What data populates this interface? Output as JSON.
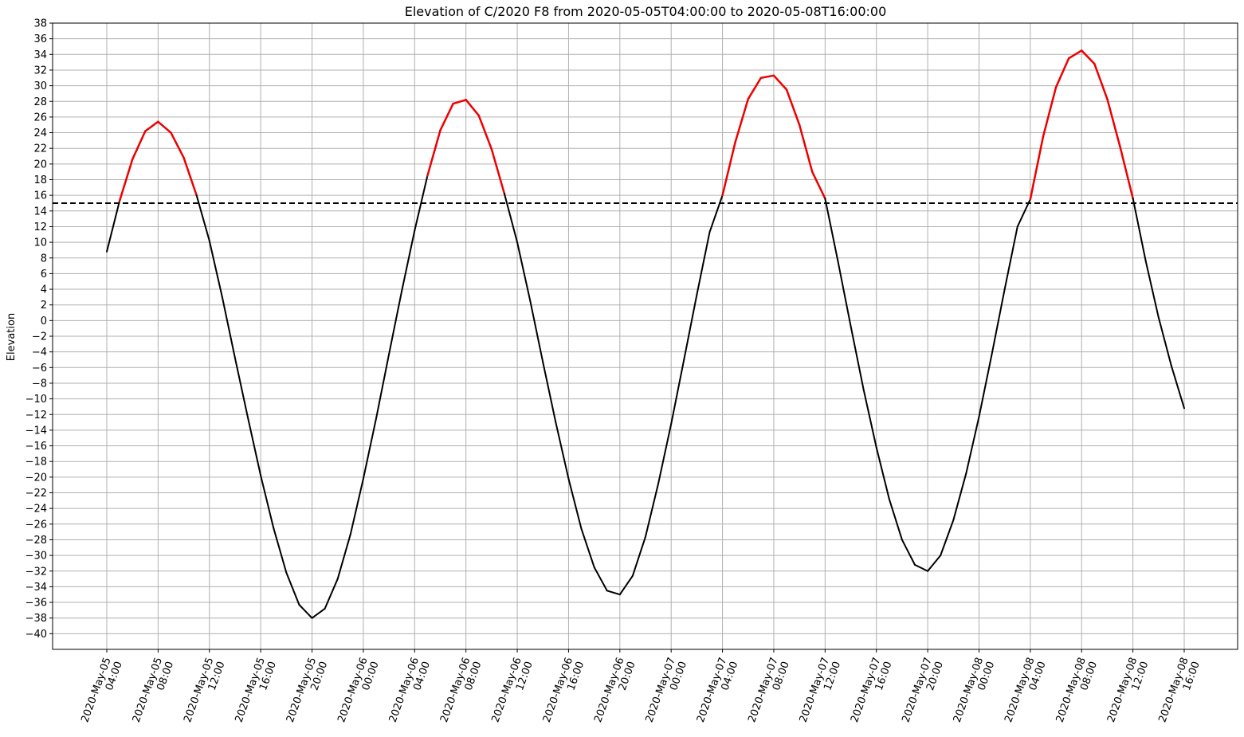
{
  "chart_data": {
    "type": "line",
    "title": "Elevation of C/2020 F8 from 2020-05-05T04:00:00 to 2020-05-08T16:00:00",
    "xlabel": "",
    "ylabel": "Elevation",
    "x_range": [
      "2020-05-05T04:00",
      "2020-05-08T16:00"
    ],
    "ylim": [
      -42,
      38
    ],
    "yticks": [
      -40,
      -38,
      -36,
      -34,
      -32,
      -30,
      -28,
      -26,
      -24,
      -22,
      -20,
      -18,
      -16,
      -14,
      -12,
      -10,
      -8,
      -6,
      -4,
      -2,
      0,
      2,
      4,
      6,
      8,
      10,
      12,
      14,
      16,
      18,
      20,
      22,
      24,
      26,
      28,
      30,
      32,
      34,
      36,
      38
    ],
    "xticks": [
      {
        "date": "2020-May-05",
        "time": "04:00"
      },
      {
        "date": "2020-May-05",
        "time": "08:00"
      },
      {
        "date": "2020-May-05",
        "time": "12:00"
      },
      {
        "date": "2020-May-05",
        "time": "16:00"
      },
      {
        "date": "2020-May-05",
        "time": "20:00"
      },
      {
        "date": "2020-May-06",
        "time": "00:00"
      },
      {
        "date": "2020-May-06",
        "time": "04:00"
      },
      {
        "date": "2020-May-06",
        "time": "08:00"
      },
      {
        "date": "2020-May-06",
        "time": "12:00"
      },
      {
        "date": "2020-May-06",
        "time": "16:00"
      },
      {
        "date": "2020-May-06",
        "time": "20:00"
      },
      {
        "date": "2020-May-07",
        "time": "00:00"
      },
      {
        "date": "2020-May-07",
        "time": "04:00"
      },
      {
        "date": "2020-May-07",
        "time": "08:00"
      },
      {
        "date": "2020-May-07",
        "time": "12:00"
      },
      {
        "date": "2020-May-07",
        "time": "16:00"
      },
      {
        "date": "2020-May-07",
        "time": "20:00"
      },
      {
        "date": "2020-May-08",
        "time": "00:00"
      },
      {
        "date": "2020-May-08",
        "time": "04:00"
      },
      {
        "date": "2020-May-08",
        "time": "08:00"
      },
      {
        "date": "2020-May-08",
        "time": "12:00"
      },
      {
        "date": "2020-May-08",
        "time": "16:00"
      }
    ],
    "threshold": {
      "y": 15,
      "style": "dashed",
      "color": "#000000"
    },
    "grid": true,
    "series": [
      {
        "color": "#000000",
        "highlight_color": "#ee0000",
        "highlight_above": 15,
        "points": [
          [
            "2020-05-05T04:00",
            8.8
          ],
          [
            "2020-05-05T05:00",
            15.3
          ],
          [
            "2020-05-05T06:00",
            20.6
          ],
          [
            "2020-05-05T07:00",
            24.2
          ],
          [
            "2020-05-05T08:00",
            25.4
          ],
          [
            "2020-05-05T09:00",
            24.0
          ],
          [
            "2020-05-05T10:00",
            20.8
          ],
          [
            "2020-05-05T11:00",
            16.0
          ],
          [
            "2020-05-05T12:00",
            10.2
          ],
          [
            "2020-05-05T13:00",
            3.0
          ],
          [
            "2020-05-05T14:00",
            -4.8
          ],
          [
            "2020-05-05T15:00",
            -12.4
          ],
          [
            "2020-05-05T16:00",
            -19.8
          ],
          [
            "2020-05-05T17:00",
            -26.5
          ],
          [
            "2020-05-05T18:00",
            -32.2
          ],
          [
            "2020-05-05T19:00",
            -36.3
          ],
          [
            "2020-05-05T20:00",
            -38.0
          ],
          [
            "2020-05-05T21:00",
            -36.8
          ],
          [
            "2020-05-05T22:00",
            -33.0
          ],
          [
            "2020-05-05T23:00",
            -27.3
          ],
          [
            "2020-05-06T00:00",
            -20.2
          ],
          [
            "2020-05-06T01:00",
            -12.5
          ],
          [
            "2020-05-06T02:00",
            -4.3
          ],
          [
            "2020-05-06T03:00",
            3.8
          ],
          [
            "2020-05-06T04:00",
            11.5
          ],
          [
            "2020-05-06T05:00",
            18.5
          ],
          [
            "2020-05-06T06:00",
            24.3
          ],
          [
            "2020-05-06T07:00",
            27.7
          ],
          [
            "2020-05-06T08:00",
            28.2
          ],
          [
            "2020-05-06T09:00",
            26.2
          ],
          [
            "2020-05-06T10:00",
            21.9
          ],
          [
            "2020-05-06T11:00",
            16.2
          ],
          [
            "2020-05-06T12:00",
            10.0
          ],
          [
            "2020-05-06T13:00",
            2.6
          ],
          [
            "2020-05-06T14:00",
            -5.3
          ],
          [
            "2020-05-06T15:00",
            -13.0
          ],
          [
            "2020-05-06T16:00",
            -20.2
          ],
          [
            "2020-05-06T17:00",
            -26.6
          ],
          [
            "2020-05-06T18:00",
            -31.5
          ],
          [
            "2020-05-06T19:00",
            -34.5
          ],
          [
            "2020-05-06T20:00",
            -35.0
          ],
          [
            "2020-05-06T21:00",
            -32.6
          ],
          [
            "2020-05-06T22:00",
            -27.6
          ],
          [
            "2020-05-06T23:00",
            -20.8
          ],
          [
            "2020-05-07T00:00",
            -13.2
          ],
          [
            "2020-05-07T01:00",
            -5.0
          ],
          [
            "2020-05-07T02:00",
            3.3
          ],
          [
            "2020-05-07T03:00",
            11.3
          ],
          [
            "2020-05-07T04:00",
            16.0
          ],
          [
            "2020-05-07T05:00",
            22.8
          ],
          [
            "2020-05-07T06:00",
            28.3
          ],
          [
            "2020-05-07T07:00",
            31.0
          ],
          [
            "2020-05-07T08:00",
            31.3
          ],
          [
            "2020-05-07T09:00",
            29.5
          ],
          [
            "2020-05-07T10:00",
            25.0
          ],
          [
            "2020-05-07T11:00",
            19.0
          ],
          [
            "2020-05-07T12:00",
            15.6
          ],
          [
            "2020-05-07T13:00",
            7.6
          ],
          [
            "2020-05-07T14:00",
            -0.7
          ],
          [
            "2020-05-07T15:00",
            -8.8
          ],
          [
            "2020-05-07T16:00",
            -16.2
          ],
          [
            "2020-05-07T17:00",
            -22.8
          ],
          [
            "2020-05-07T18:00",
            -28.0
          ],
          [
            "2020-05-07T19:00",
            -31.2
          ],
          [
            "2020-05-07T20:00",
            -32.0
          ],
          [
            "2020-05-07T21:00",
            -30.0
          ],
          [
            "2020-05-07T22:00",
            -25.5
          ],
          [
            "2020-05-07T23:00",
            -19.5
          ],
          [
            "2020-05-08T00:00",
            -12.3
          ],
          [
            "2020-05-08T01:00",
            -4.3
          ],
          [
            "2020-05-08T02:00",
            4.0
          ],
          [
            "2020-05-08T03:00",
            12.0
          ],
          [
            "2020-05-08T04:00",
            15.5
          ],
          [
            "2020-05-08T05:00",
            23.5
          ],
          [
            "2020-05-08T06:00",
            29.8
          ],
          [
            "2020-05-08T07:00",
            33.5
          ],
          [
            "2020-05-08T08:00",
            34.5
          ],
          [
            "2020-05-08T09:00",
            32.8
          ],
          [
            "2020-05-08T10:00",
            28.3
          ],
          [
            "2020-05-08T11:00",
            22.2
          ],
          [
            "2020-05-08T12:00",
            15.6
          ],
          [
            "2020-05-08T13:00",
            7.6
          ],
          [
            "2020-05-08T14:00",
            0.4
          ],
          [
            "2020-05-08T15:00",
            -5.8
          ],
          [
            "2020-05-08T16:00",
            -11.2
          ]
        ]
      }
    ]
  }
}
